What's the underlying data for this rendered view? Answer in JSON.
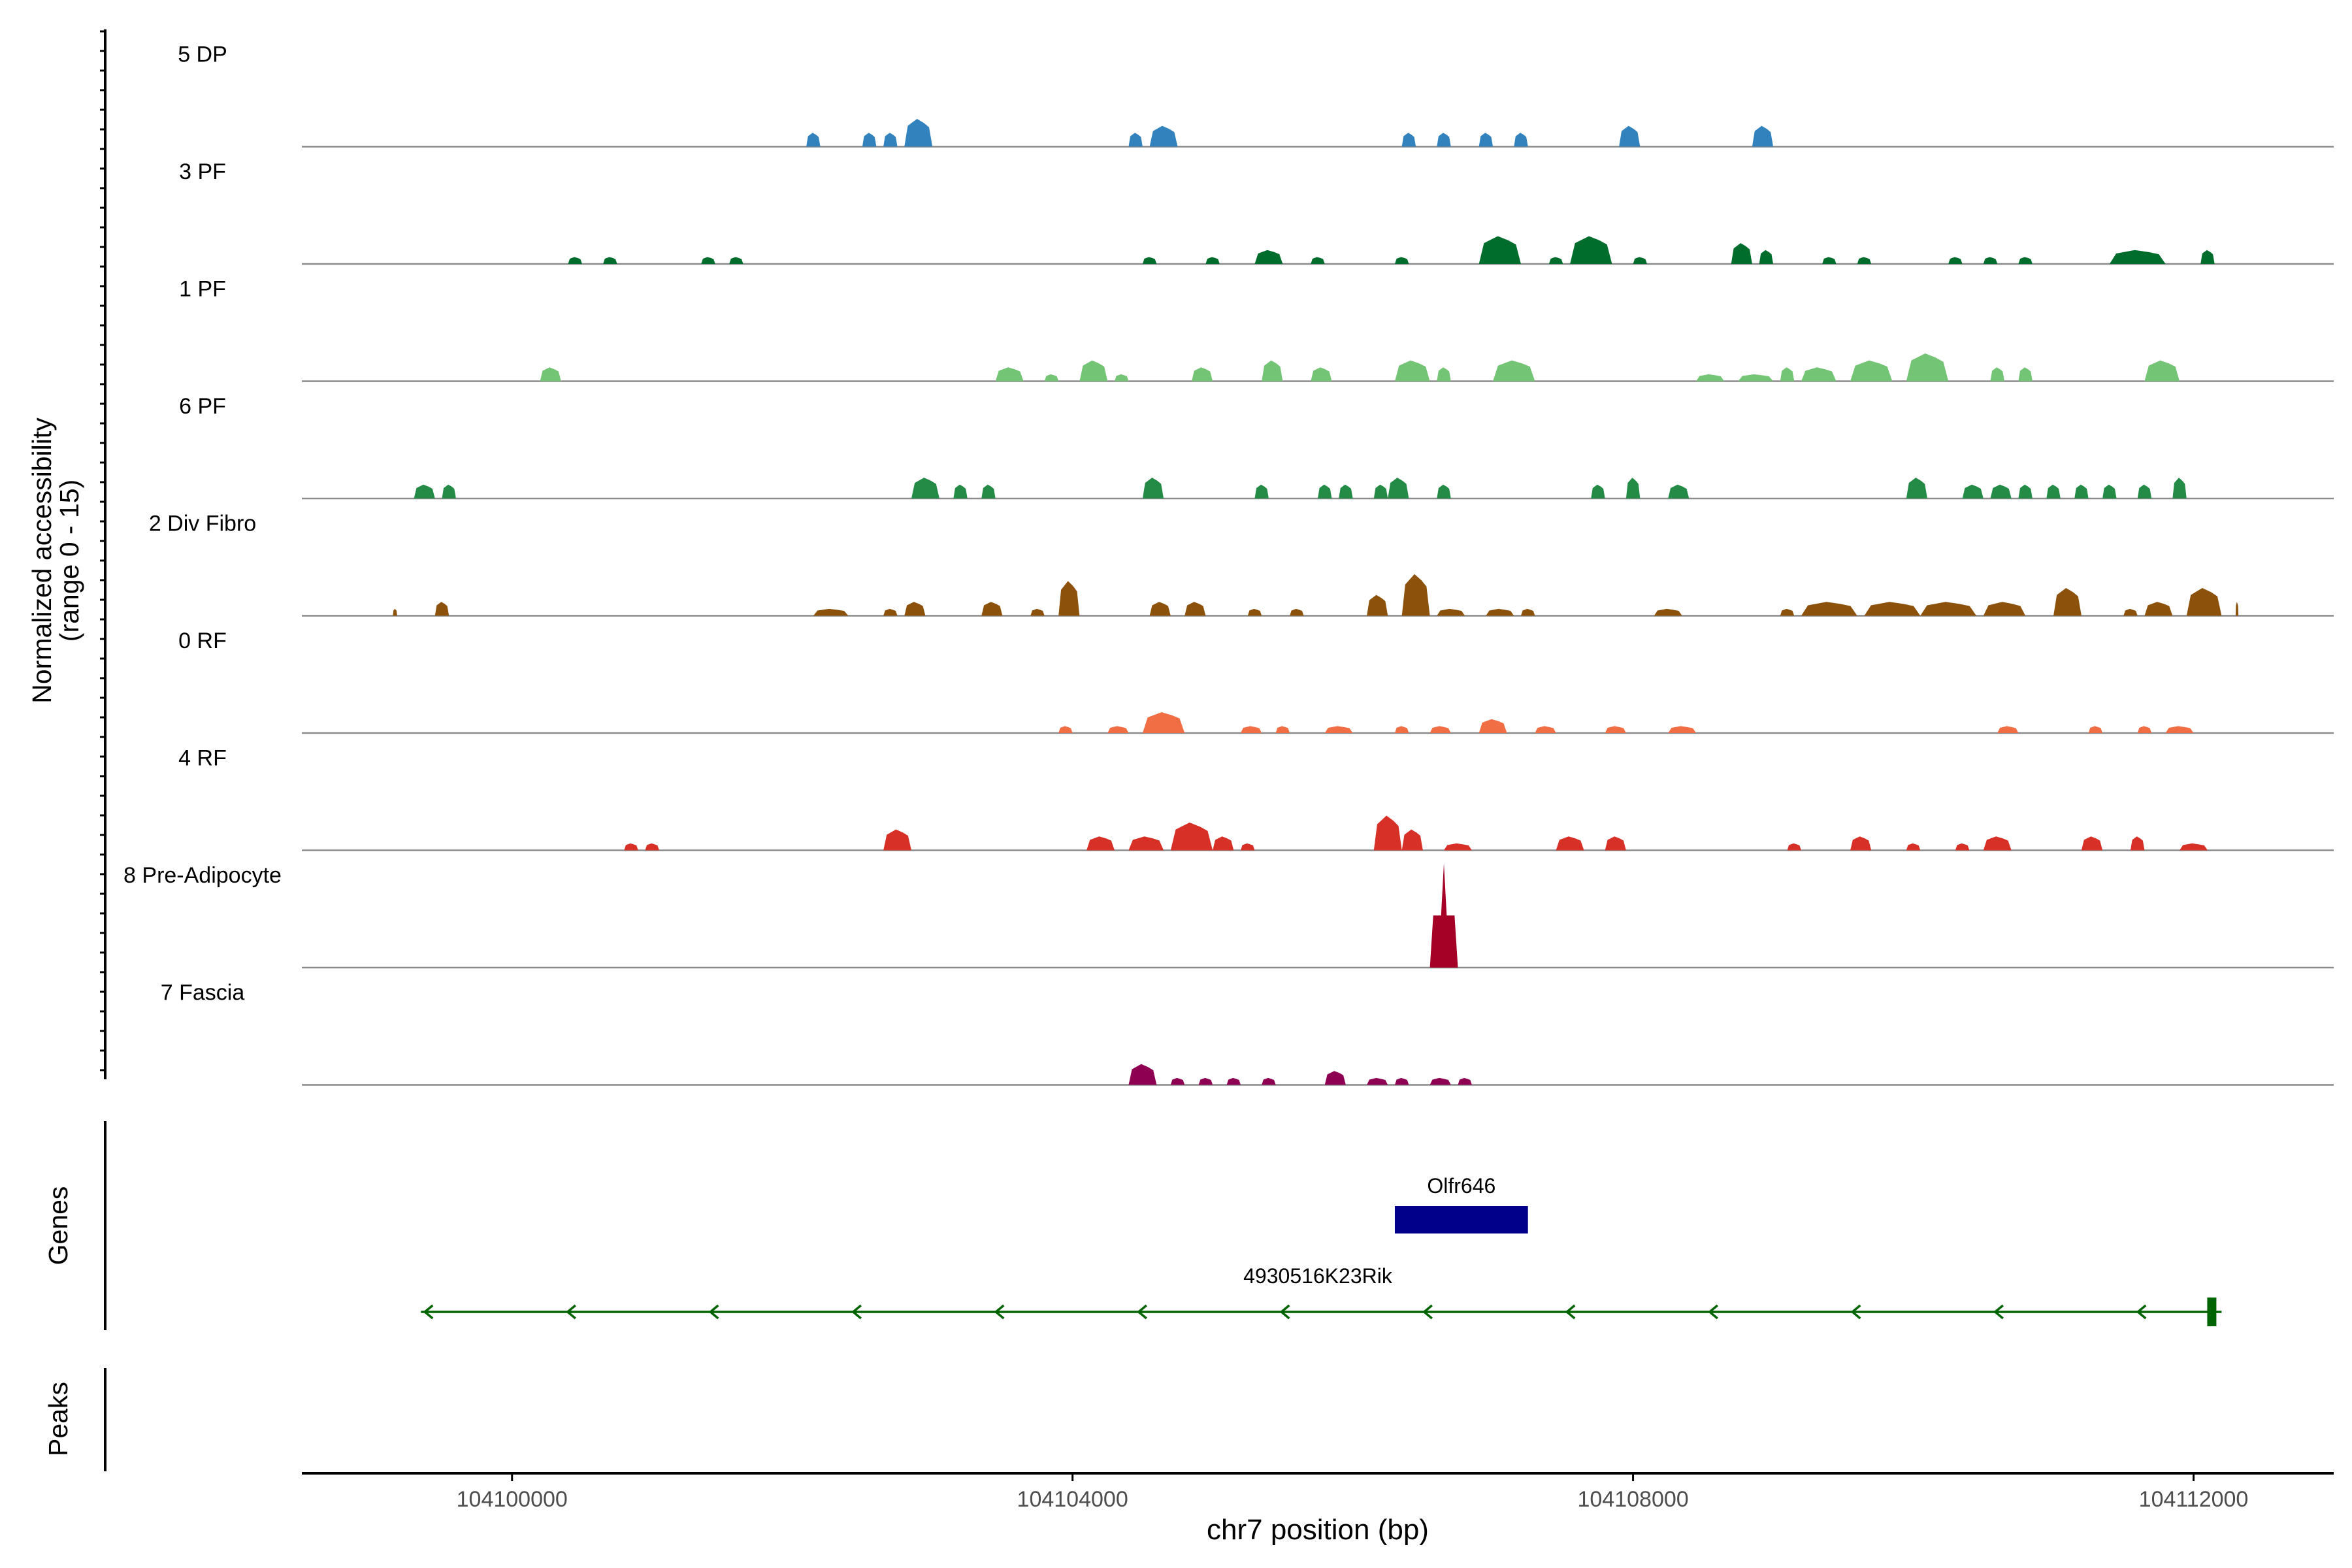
{
  "chart_data": {
    "type": "area",
    "title": "",
    "ylabel_line1": "Normalized accessibility",
    "ylabel_line2": "(range 0 - 15)",
    "xlabel": "chr7 position (bp)",
    "xlim": [
      104098500,
      104113000
    ],
    "x_ticks": [
      104100000,
      104104000,
      104108000,
      104112000
    ],
    "x_tick_labels": [
      "104100000",
      "104104000",
      "104108000",
      "104112000"
    ],
    "y_range": [
      0,
      15
    ],
    "tracks": [
      {
        "name": "5 DP",
        "color": "#3182bd",
        "peaks": [
          [
            104102100,
            104102200,
            2
          ],
          [
            104102500,
            104102600,
            2
          ],
          [
            104102650,
            104102750,
            2
          ],
          [
            104102800,
            104103000,
            4
          ],
          [
            104104400,
            104104500,
            2
          ],
          [
            104104550,
            104104750,
            3
          ],
          [
            104106350,
            104106450,
            2
          ],
          [
            104106600,
            104106700,
            2
          ],
          [
            104106900,
            104107000,
            2
          ],
          [
            104107150,
            104107250,
            2
          ],
          [
            104107900,
            104108050,
            3
          ],
          [
            104108850,
            104109000,
            3
          ]
        ]
      },
      {
        "name": "3 PF",
        "color": "#006d2c",
        "peaks": [
          [
            104100400,
            104100500,
            1
          ],
          [
            104100650,
            104100750,
            1
          ],
          [
            104101350,
            104101450,
            1
          ],
          [
            104101550,
            104101650,
            1
          ],
          [
            104104500,
            104104600,
            1
          ],
          [
            104104950,
            104105050,
            1
          ],
          [
            104105300,
            104105500,
            2
          ],
          [
            104105700,
            104105800,
            1
          ],
          [
            104106300,
            104106400,
            1
          ],
          [
            104106900,
            104107200,
            4
          ],
          [
            104107400,
            104107500,
            1
          ],
          [
            104107550,
            104107850,
            4
          ],
          [
            104108000,
            104108100,
            1
          ],
          [
            104108700,
            104108850,
            3
          ],
          [
            104108900,
            104109000,
            2
          ],
          [
            104109350,
            104109450,
            1
          ],
          [
            104109600,
            104109700,
            1
          ],
          [
            104110250,
            104110350,
            1
          ],
          [
            104110500,
            104110600,
            1
          ],
          [
            104110750,
            104110850,
            1
          ],
          [
            104111400,
            104111800,
            2
          ],
          [
            104112050,
            104112150,
            2
          ]
        ]
      },
      {
        "name": "1 PF",
        "color": "#74c476",
        "peaks": [
          [
            104100200,
            104100350,
            2
          ],
          [
            104103450,
            104103650,
            2
          ],
          [
            104103800,
            104103900,
            1
          ],
          [
            104104050,
            104104250,
            3
          ],
          [
            104104300,
            104104400,
            1
          ],
          [
            104104850,
            104105000,
            2
          ],
          [
            104105350,
            104105500,
            3
          ],
          [
            104105700,
            104105850,
            2
          ],
          [
            104106300,
            104106550,
            3
          ],
          [
            104106600,
            104106700,
            2
          ],
          [
            104107000,
            104107300,
            3
          ],
          [
            104108450,
            104108650,
            1
          ],
          [
            104108750,
            104109000,
            1
          ],
          [
            104109050,
            104109150,
            2
          ],
          [
            104109200,
            104109450,
            2
          ],
          [
            104109550,
            104109850,
            3
          ],
          [
            104109950,
            104110250,
            4
          ],
          [
            104110550,
            104110650,
            2
          ],
          [
            104110750,
            104110850,
            2
          ],
          [
            104111650,
            104111900,
            3
          ]
        ]
      },
      {
        "name": "6 PF",
        "color": "#238b45",
        "peaks": [
          [
            104099300,
            104099450,
            2
          ],
          [
            104099500,
            104099600,
            2
          ],
          [
            104102850,
            104103050,
            3
          ],
          [
            104103150,
            104103250,
            2
          ],
          [
            104103350,
            104103450,
            2
          ],
          [
            104104500,
            104104650,
            3
          ],
          [
            104105300,
            104105400,
            2
          ],
          [
            104105750,
            104105850,
            2
          ],
          [
            104105900,
            104106000,
            2
          ],
          [
            104106150,
            104106250,
            2
          ],
          [
            104106250,
            104106400,
            3
          ],
          [
            104106600,
            104106700,
            2
          ],
          [
            104107700,
            104107800,
            2
          ],
          [
            104107950,
            104108050,
            3
          ],
          [
            104108250,
            104108400,
            2
          ],
          [
            104109950,
            104110100,
            3
          ],
          [
            104110350,
            104110500,
            2
          ],
          [
            104110550,
            104110700,
            2
          ],
          [
            104110750,
            104110850,
            2
          ],
          [
            104110950,
            104111050,
            2
          ],
          [
            104111150,
            104111250,
            2
          ],
          [
            104111350,
            104111450,
            2
          ],
          [
            104111600,
            104111700,
            2
          ],
          [
            104111850,
            104111950,
            3
          ]
        ]
      },
      {
        "name": "2 Div Fibro",
        "color": "#8c510a",
        "peaks": [
          [
            104099150,
            104099180,
            1
          ],
          [
            104099450,
            104099550,
            2
          ],
          [
            104102150,
            104102400,
            1
          ],
          [
            104102650,
            104102750,
            1
          ],
          [
            104102800,
            104102950,
            2
          ],
          [
            104103350,
            104103500,
            2
          ],
          [
            104103700,
            104103800,
            1
          ],
          [
            104103900,
            104104050,
            5
          ],
          [
            104104550,
            104104700,
            2
          ],
          [
            104104800,
            104104950,
            2
          ],
          [
            104105250,
            104105350,
            1
          ],
          [
            104105550,
            104105650,
            1
          ],
          [
            104106100,
            104106250,
            3
          ],
          [
            104106350,
            104106550,
            6
          ],
          [
            104106600,
            104106800,
            1
          ],
          [
            104106950,
            104107150,
            1
          ],
          [
            104107200,
            104107300,
            1
          ],
          [
            104108150,
            104108350,
            1
          ],
          [
            104109050,
            104109150,
            1
          ],
          [
            104109200,
            104109600,
            2
          ],
          [
            104109650,
            104110050,
            2
          ],
          [
            104110050,
            104110450,
            2
          ],
          [
            104110500,
            104110800,
            2
          ],
          [
            104111000,
            104111200,
            4
          ],
          [
            104111500,
            104111600,
            1
          ],
          [
            104111650,
            104111850,
            2
          ],
          [
            104111950,
            104112200,
            4
          ],
          [
            104112300,
            104112320,
            2
          ]
        ]
      },
      {
        "name": "0 RF",
        "color": "#f16d43",
        "peaks": [
          [
            104103900,
            104104000,
            1
          ],
          [
            104104250,
            104104400,
            1
          ],
          [
            104104500,
            104104800,
            3
          ],
          [
            104105200,
            104105350,
            1
          ],
          [
            104105450,
            104105550,
            1
          ],
          [
            104105800,
            104106000,
            1
          ],
          [
            104106300,
            104106400,
            1
          ],
          [
            104106550,
            104106700,
            1
          ],
          [
            104106900,
            104107100,
            2
          ],
          [
            104107300,
            104107450,
            1
          ],
          [
            104107800,
            104107950,
            1
          ],
          [
            104108250,
            104108450,
            1
          ],
          [
            104110600,
            104110750,
            1
          ],
          [
            104111250,
            104111350,
            1
          ],
          [
            104111600,
            104111700,
            1
          ],
          [
            104111800,
            104112000,
            1
          ]
        ]
      },
      {
        "name": "4 RF",
        "color": "#d73027",
        "peaks": [
          [
            104100800,
            104100900,
            1
          ],
          [
            104100950,
            104101050,
            1
          ],
          [
            104102650,
            104102850,
            3
          ],
          [
            104104100,
            104104300,
            2
          ],
          [
            104104400,
            104104650,
            2
          ],
          [
            104104700,
            104105000,
            4
          ],
          [
            104105000,
            104105150,
            2
          ],
          [
            104105200,
            104105300,
            1
          ],
          [
            104106150,
            104106350,
            5
          ],
          [
            104106350,
            104106500,
            3
          ],
          [
            104106650,
            104106850,
            1
          ],
          [
            104107450,
            104107650,
            2
          ],
          [
            104107800,
            104107950,
            2
          ],
          [
            104109100,
            104109200,
            1
          ],
          [
            104109550,
            104109700,
            2
          ],
          [
            104109950,
            104110050,
            1
          ],
          [
            104110300,
            104110400,
            1
          ],
          [
            104110500,
            104110700,
            2
          ],
          [
            104111200,
            104111350,
            2
          ],
          [
            104111550,
            104111650,
            2
          ],
          [
            104111900,
            104112100,
            1
          ]
        ]
      },
      {
        "name": "8 Pre-Adipocyte",
        "color": "#a50026",
        "peaks": [
          [
            104106550,
            104106750,
            15
          ]
        ]
      },
      {
        "name": "7 Fascia",
        "color": "#8e0152",
        "peaks": [
          [
            104104400,
            104104600,
            3
          ],
          [
            104104700,
            104104800,
            1
          ],
          [
            104104900,
            104105000,
            1
          ],
          [
            104105100,
            104105200,
            1
          ],
          [
            104105350,
            104105450,
            1
          ],
          [
            104105800,
            104105950,
            2
          ],
          [
            104106100,
            104106250,
            1
          ],
          [
            104106300,
            104106400,
            1
          ],
          [
            104106550,
            104106700,
            1
          ],
          [
            104106750,
            104106850,
            1
          ]
        ]
      }
    ],
    "genes": [
      {
        "name": "Olfr646",
        "start": 104106300,
        "end": 104107250,
        "strand": "+",
        "color": "#00008b"
      },
      {
        "name": "4930516K23Rik",
        "start": 104099350,
        "end": 104112200,
        "strand": "-",
        "color": "#006400"
      }
    ],
    "panel_labels": {
      "genes": "Genes",
      "peaks": "Peaks"
    }
  }
}
